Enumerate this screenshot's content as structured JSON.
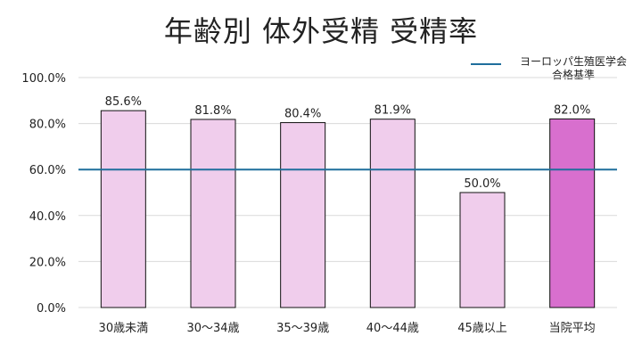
{
  "chart_data": {
    "type": "bar",
    "title": "年齢別 体外受精 受精率",
    "categories": [
      "30歳未満",
      "30〜34歳",
      "35〜39歳",
      "40〜44歳",
      "45歳以上",
      "当院平均"
    ],
    "values": [
      85.6,
      81.8,
      80.4,
      81.9,
      50.0,
      82.0
    ],
    "value_labels": [
      "85.6%",
      "81.8%",
      "80.4%",
      "81.9%",
      "50.0%",
      "82.0%"
    ],
    "ylim": [
      0,
      100
    ],
    "yticks": [
      0,
      20,
      40,
      60,
      80,
      100
    ],
    "ytick_labels": [
      "0.0%",
      "20.0%",
      "40.0%",
      "60.0%",
      "80.0%",
      "100.0%"
    ],
    "reference_line": {
      "value": 60,
      "label": "ヨーロッパ生殖医学会\n合格基準",
      "color": "#1f6e9c"
    },
    "bar_color": "#f0cdec",
    "highlight_color": "#d86fce",
    "highlight_index": 5,
    "grid": true,
    "legend_position": "top-right"
  }
}
